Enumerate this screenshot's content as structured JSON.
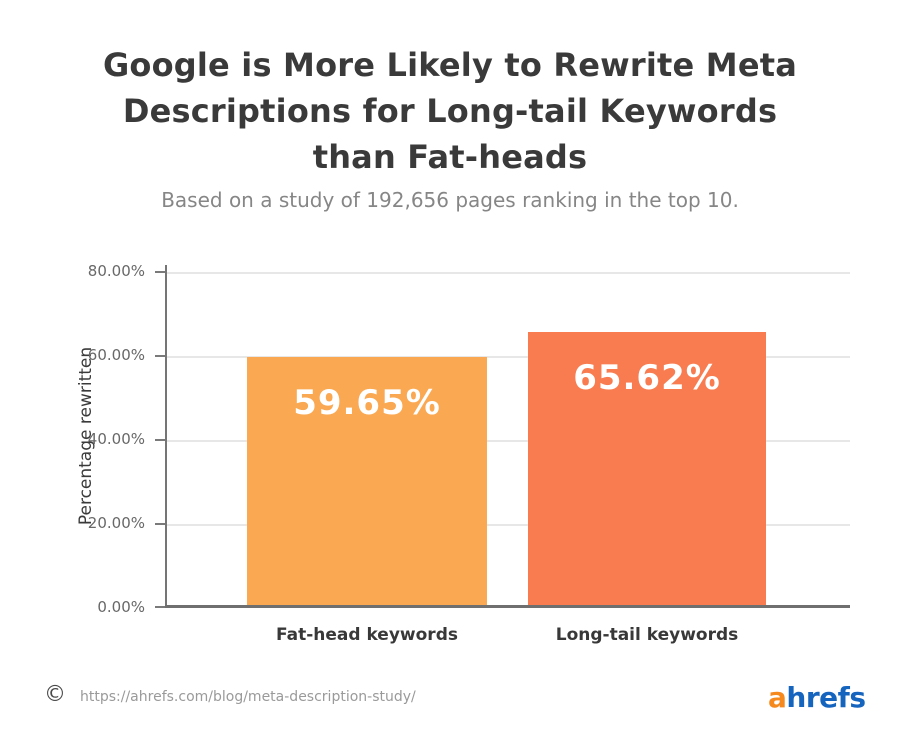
{
  "header": {
    "title_lines": [
      "Google is More Likely to Rewrite Meta",
      "Descriptions for Long-tail Keywords",
      "than Fat-heads"
    ],
    "subtitle": "Based on a study of 192,656 pages ranking in the top 10."
  },
  "chart_data": {
    "type": "bar",
    "title": "Google is More Likely to Rewrite Meta Descriptions for Long-tail Keywords than Fat-heads",
    "subtitle": "Based on a study of 192,656 pages ranking in the top 10.",
    "categories": [
      "Fat-head keywords",
      "Long-tail keywords"
    ],
    "values": [
      59.65,
      65.62
    ],
    "data_labels": [
      "59.65%",
      "65.62%"
    ],
    "bar_colors": [
      "#FAA851",
      "#F87C50"
    ],
    "xlabel": "",
    "ylabel": "Percentage rewritten",
    "ylim": [
      0,
      80
    ],
    "ytick_labels": [
      "0.00%",
      "20.00%",
      "40.00%",
      "60.00%",
      "80.00%"
    ],
    "grid": true,
    "legend": false
  },
  "footer": {
    "copyright_symbol": "©",
    "source_url": "https://ahrefs.com/blog/meta-description-study/",
    "logo": {
      "prefix": "a",
      "suffix": "hrefs",
      "prefix_color": "#F6891E",
      "suffix_color": "#1564BE"
    }
  }
}
